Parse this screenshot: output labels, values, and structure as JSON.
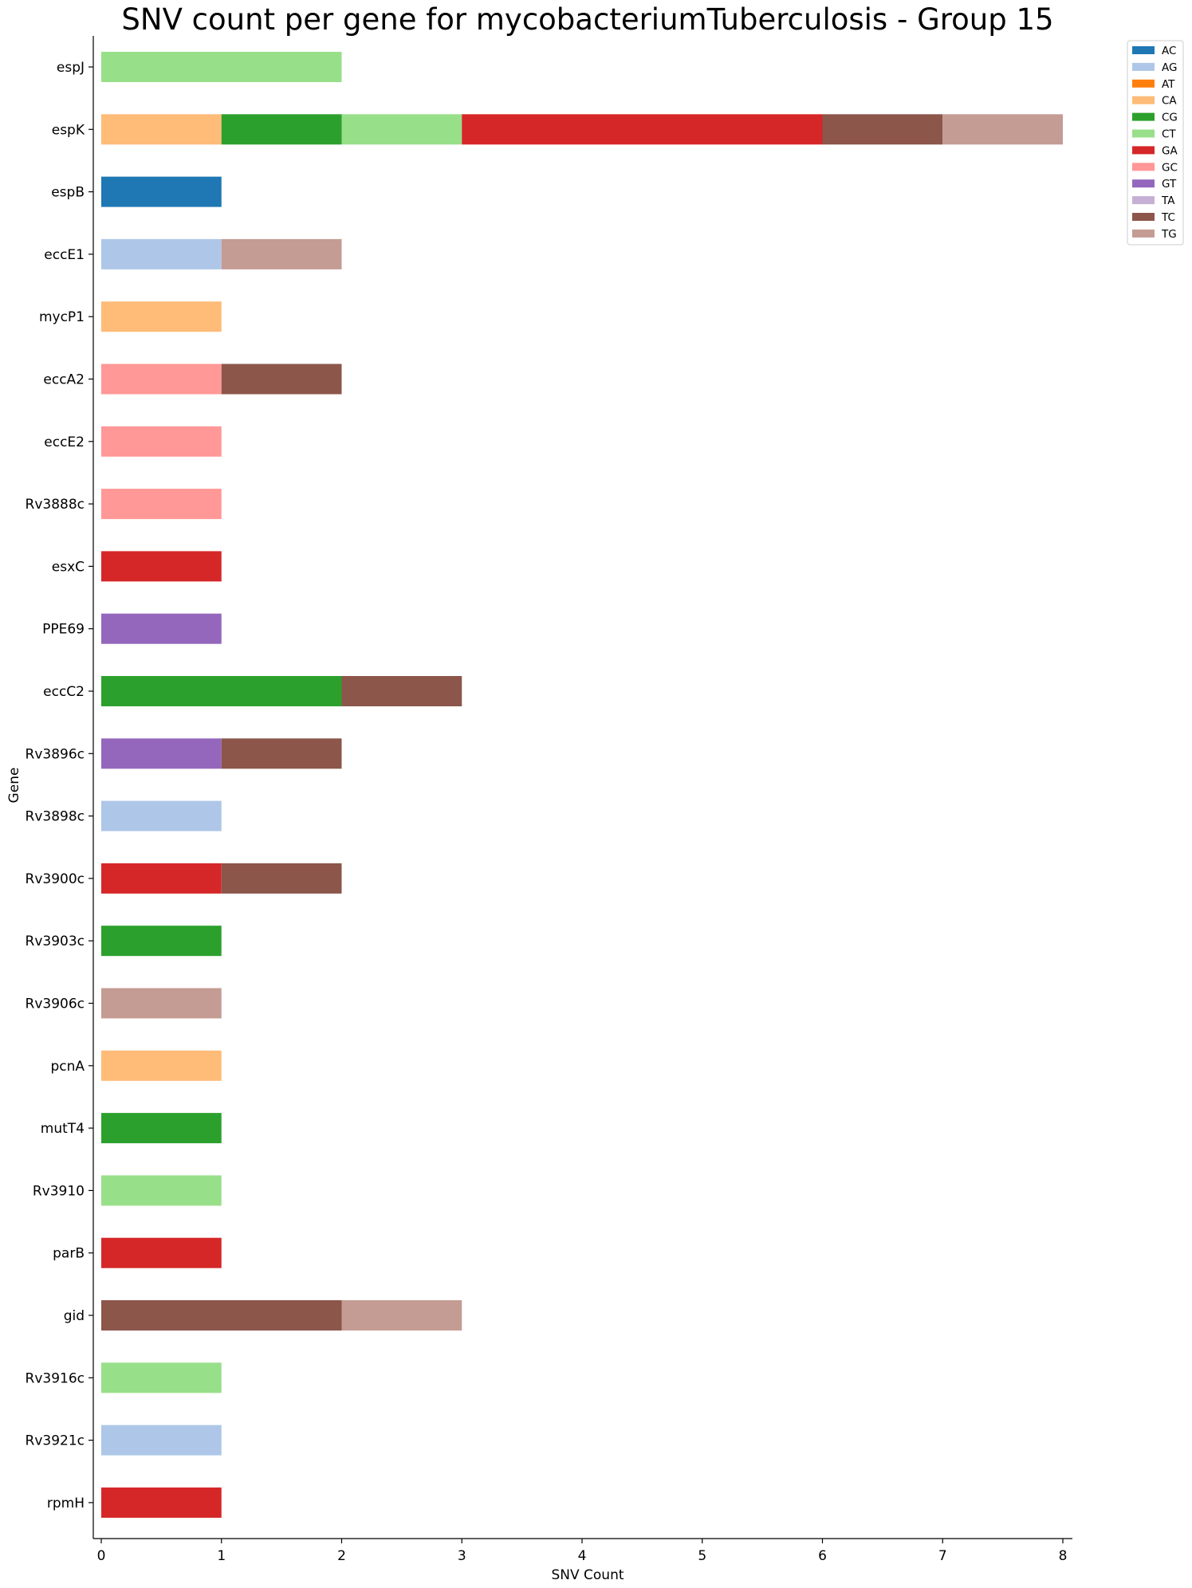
{
  "chart_data": {
    "type": "bar",
    "orientation": "horizontal",
    "stacked": true,
    "title": "SNV count per gene for mycobacteriumTuberculosis - Group 15",
    "xlabel": "SNV Count",
    "ylabel": "Gene",
    "xlim": [
      0,
      8
    ],
    "x_ticks": [
      "0",
      "1",
      "2",
      "3",
      "4",
      "5",
      "6",
      "7",
      "8"
    ],
    "grid": false,
    "legend_position": "top-right",
    "categories": [
      "espJ",
      "espK",
      "espB",
      "eccE1",
      "mycP1",
      "eccA2",
      "eccE2",
      "Rv3888c",
      "esxC",
      "PPE69",
      "eccC2",
      "Rv3896c",
      "Rv3898c",
      "Rv3900c",
      "Rv3903c",
      "Rv3906c",
      "pcnA",
      "mutT4",
      "Rv3910",
      "parB",
      "gid",
      "Rv3916c",
      "Rv3921c",
      "rpmH"
    ],
    "series": [
      {
        "name": "AC",
        "color": "#1f77b4",
        "values": [
          0,
          0,
          1,
          0,
          0,
          0,
          0,
          0,
          0,
          0,
          0,
          0,
          0,
          0,
          0,
          0,
          0,
          0,
          0,
          0,
          0,
          0,
          0,
          0
        ]
      },
      {
        "name": "AG",
        "color": "#aec7e8",
        "values": [
          0,
          0,
          0,
          1,
          0,
          0,
          0,
          0,
          0,
          0,
          0,
          0,
          1,
          0,
          0,
          0,
          0,
          0,
          0,
          0,
          0,
          0,
          1,
          0
        ]
      },
      {
        "name": "AT",
        "color": "#ff7f0e",
        "values": [
          0,
          0,
          0,
          0,
          0,
          0,
          0,
          0,
          0,
          0,
          0,
          0,
          0,
          0,
          0,
          0,
          0,
          0,
          0,
          0,
          0,
          0,
          0,
          0
        ]
      },
      {
        "name": "CA",
        "color": "#ffbb78",
        "values": [
          0,
          1,
          0,
          0,
          1,
          0,
          0,
          0,
          0,
          0,
          0,
          0,
          0,
          0,
          0,
          0,
          1,
          0,
          0,
          0,
          0,
          0,
          0,
          0
        ]
      },
      {
        "name": "CG",
        "color": "#2ca02c",
        "values": [
          0,
          1,
          0,
          0,
          0,
          0,
          0,
          0,
          0,
          0,
          2,
          0,
          0,
          0,
          1,
          0,
          0,
          1,
          0,
          0,
          0,
          0,
          0,
          0
        ]
      },
      {
        "name": "CT",
        "color": "#98df8a",
        "values": [
          2,
          1,
          0,
          0,
          0,
          0,
          0,
          0,
          0,
          0,
          0,
          0,
          0,
          0,
          0,
          0,
          0,
          0,
          1,
          0,
          0,
          1,
          0,
          0
        ]
      },
      {
        "name": "GA",
        "color": "#d62728",
        "values": [
          0,
          3,
          0,
          0,
          0,
          0,
          0,
          0,
          1,
          0,
          0,
          0,
          0,
          1,
          0,
          0,
          0,
          0,
          0,
          1,
          0,
          0,
          0,
          1
        ]
      },
      {
        "name": "GC",
        "color": "#ff9896",
        "values": [
          0,
          0,
          0,
          0,
          0,
          1,
          1,
          1,
          0,
          0,
          0,
          0,
          0,
          0,
          0,
          0,
          0,
          0,
          0,
          0,
          0,
          0,
          0,
          0
        ]
      },
      {
        "name": "GT",
        "color": "#9467bd",
        "values": [
          0,
          0,
          0,
          0,
          0,
          0,
          0,
          0,
          0,
          1,
          0,
          1,
          0,
          0,
          0,
          0,
          0,
          0,
          0,
          0,
          0,
          0,
          0,
          0
        ]
      },
      {
        "name": "TA",
        "color": "#c5b0d5",
        "values": [
          0,
          0,
          0,
          0,
          0,
          0,
          0,
          0,
          0,
          0,
          0,
          0,
          0,
          0,
          0,
          0,
          0,
          0,
          0,
          0,
          0,
          0,
          0,
          0
        ]
      },
      {
        "name": "TC",
        "color": "#8c564b",
        "values": [
          0,
          1,
          0,
          0,
          0,
          1,
          0,
          0,
          0,
          0,
          1,
          1,
          0,
          1,
          0,
          0,
          0,
          0,
          0,
          0,
          2,
          0,
          0,
          0
        ]
      },
      {
        "name": "TG",
        "color": "#c49c94",
        "values": [
          0,
          1,
          0,
          1,
          0,
          0,
          0,
          0,
          0,
          0,
          0,
          0,
          0,
          0,
          0,
          1,
          0,
          0,
          0,
          0,
          1,
          0,
          0,
          0
        ]
      }
    ]
  }
}
